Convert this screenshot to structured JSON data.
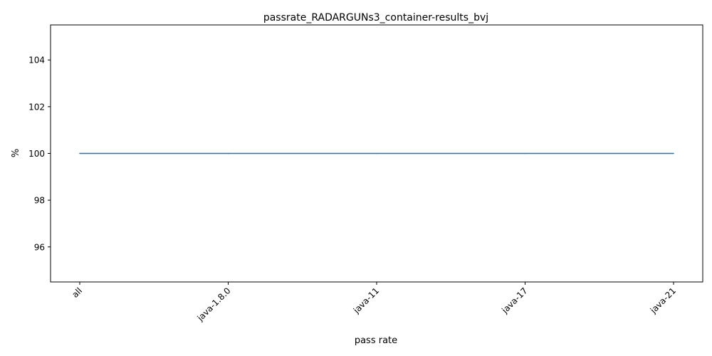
{
  "chart_data": {
    "type": "line",
    "title": "passrate_RADARGUNs3_container-results_bvj",
    "xlabel": "pass rate",
    "ylabel": "%",
    "categories": [
      "all",
      "java-1.8.0",
      "java-11",
      "java-17",
      "java-21"
    ],
    "series": [
      {
        "values": [
          100,
          100,
          100,
          100,
          100
        ],
        "color": "#1f77b4"
      }
    ],
    "ylim": [
      94.5,
      105.5
    ],
    "yticks": [
      96,
      98,
      100,
      102,
      104
    ],
    "grid": false,
    "legend": "none"
  }
}
